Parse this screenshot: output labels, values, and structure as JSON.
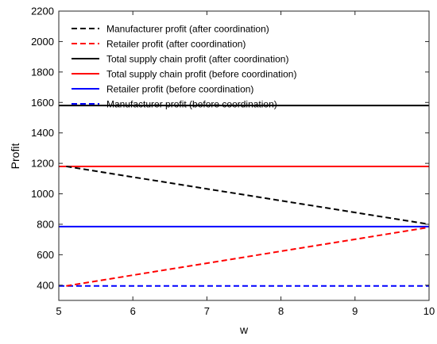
{
  "chart_data": {
    "type": "line",
    "xlabel": "w",
    "ylabel": "Profit",
    "xlim": [
      5,
      10
    ],
    "ylim": [
      300,
      2200
    ],
    "xticks": [
      "5",
      "6",
      "7",
      "8",
      "9",
      "10"
    ],
    "yticks": [
      "400",
      "600",
      "800",
      "1000",
      "1200",
      "1400",
      "1600",
      "1800",
      "2000",
      "2200"
    ],
    "grid": false,
    "legend_position": "top-left",
    "series": [
      {
        "name": "Manufacturer profit (after coordination)",
        "color": "#000000",
        "dash": "dashed",
        "x": [
          5.1,
          10
        ],
        "y": [
          1180,
          800
        ]
      },
      {
        "name": "Retailer profit (after coordination)",
        "color": "#ff0000",
        "dash": "dashed",
        "x": [
          5.1,
          10
        ],
        "y": [
          395,
          780
        ]
      },
      {
        "name": "Total supply chain profit (after coordination)",
        "color": "#000000",
        "dash": "solid",
        "x": [
          5,
          10
        ],
        "y": [
          1580,
          1580
        ]
      },
      {
        "name": "Total supply chain profit (before coordination)",
        "color": "#ff0000",
        "dash": "solid",
        "x": [
          5,
          10
        ],
        "y": [
          1180,
          1180
        ]
      },
      {
        "name": "Retailer profit (before coordination)",
        "color": "#0000ff",
        "dash": "solid",
        "x": [
          5,
          10
        ],
        "y": [
          785,
          785
        ]
      },
      {
        "name": "Manufacturer profit (before coordination)",
        "color": "#0000ff",
        "dash": "dashed",
        "x": [
          5,
          10
        ],
        "y": [
          395,
          395
        ]
      }
    ]
  }
}
